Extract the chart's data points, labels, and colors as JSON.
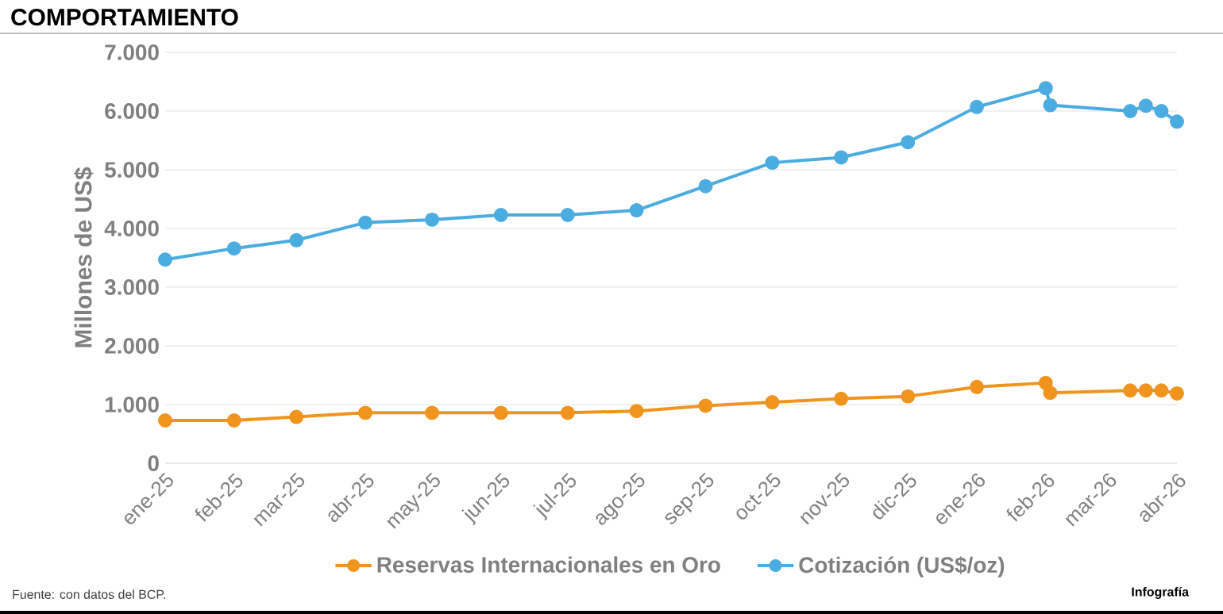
{
  "chart_data": {
    "type": "line",
    "title": "COMPORTAMIENTO",
    "ylabel": "Millones de US$",
    "x": [
      "2025-01-01",
      "2025-02-01",
      "2025-03-01",
      "2025-04-01",
      "2025-05-01",
      "2025-06-01",
      "2025-07-01",
      "2025-08-01",
      "2025-09-01",
      "2025-10-01",
      "2025-11-01",
      "2025-12-01",
      "2026-01-01",
      "2026-02-01",
      "2026-02-03",
      "2026-03-11",
      "2026-03-18",
      "2026-03-25",
      "2026-04-01"
    ],
    "series": [
      {
        "name": "Reservas Internacionales en Oro",
        "color": "#f0941e",
        "values": [
          730,
          730,
          790,
          860,
          860,
          860,
          860,
          890,
          980,
          1040,
          1100,
          1140,
          1300,
          1370,
          1200,
          1240,
          1240,
          1240,
          1190
        ]
      },
      {
        "name": "Cotización (US$/oz)",
        "color": "#4aace0",
        "values": [
          3470,
          3660,
          3800,
          4100,
          4150,
          4230,
          4230,
          4310,
          4720,
          5120,
          5210,
          5470,
          6070,
          6390,
          6100,
          6000,
          6090,
          6000,
          5820
        ]
      }
    ],
    "xlim": [
      "2025-01-01",
      "2026-04-01"
    ],
    "xticks": [
      {
        "value": "2025-01-01",
        "label": "ene-25"
      },
      {
        "value": "2025-02-01",
        "label": "feb-25"
      },
      {
        "value": "2025-03-01",
        "label": "mar-25"
      },
      {
        "value": "2025-04-01",
        "label": "abr-25"
      },
      {
        "value": "2025-05-01",
        "label": "may-25"
      },
      {
        "value": "2025-06-01",
        "label": "jun-25"
      },
      {
        "value": "2025-07-01",
        "label": "jul-25"
      },
      {
        "value": "2025-08-01",
        "label": "ago-25"
      },
      {
        "value": "2025-09-01",
        "label": "sep-25"
      },
      {
        "value": "2025-10-01",
        "label": "oct-25"
      },
      {
        "value": "2025-11-01",
        "label": "nov-25"
      },
      {
        "value": "2025-12-01",
        "label": "dic-25"
      },
      {
        "value": "2026-01-01",
        "label": "ene-26"
      },
      {
        "value": "2026-02-01",
        "label": "feb-26"
      },
      {
        "value": "2026-03-01",
        "label": "mar-26"
      },
      {
        "value": "2026-04-01",
        "label": "abr-26"
      }
    ],
    "ylim": [
      0,
      7000
    ],
    "yticks": [
      0,
      {
        "value": 1000,
        "label": "1.000"
      },
      {
        "value": 2000,
        "label": "2.000"
      },
      {
        "value": 3000,
        "label": "3.000"
      },
      {
        "value": 4000,
        "label": "4.000"
      },
      {
        "value": 5000,
        "label": "5.000"
      },
      {
        "value": 6000,
        "label": "6.000"
      },
      {
        "value": 7000,
        "label": "7.000"
      }
    ],
    "grid": "y",
    "legend": "bottom",
    "marker": "circle",
    "line_style": "solid",
    "annotations": [
      "Fuente: con datos del BCP.",
      "Infografía"
    ]
  }
}
